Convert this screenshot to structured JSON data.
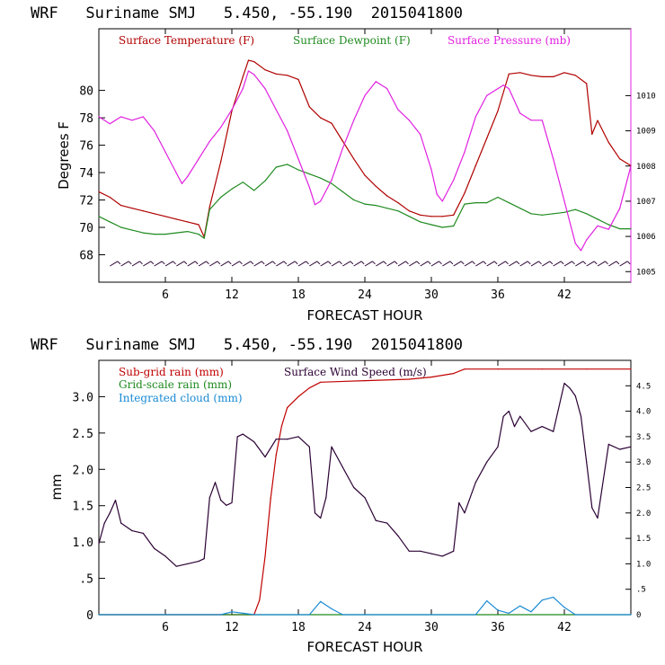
{
  "colors": {
    "temperature": "#b00000",
    "dewpoint": "#1f8a1f",
    "pressure": "#e020e0",
    "wind_speed": "#2a0033",
    "subgrid_rain": "#c00000",
    "grid_rain": "#1f8a1f",
    "cloud": "#1a8ad4",
    "wind_barb": "#2a0033"
  },
  "chart_data": [
    {
      "type": "line",
      "title": "WRF   Suriname SMJ   5.450, -55.190  2015041800",
      "xlabel": "FORECAST HOUR",
      "ylabel": "Degrees F",
      "xlim": [
        0,
        48
      ],
      "ylim": [
        66,
        84.5
      ],
      "y2lim": [
        1004.7,
        1011.9
      ],
      "x_ticks": [
        6,
        12,
        18,
        24,
        30,
        36,
        42
      ],
      "x_tick_labels": [
        "6",
        "12",
        "18",
        "24",
        "30",
        "36",
        "42"
      ],
      "y_ticks": [
        68,
        70,
        72,
        74,
        76,
        78,
        80
      ],
      "y_tick_labels": [
        "68",
        "70",
        "72",
        "74",
        "76",
        "78",
        "80"
      ],
      "y2_ticks": [
        1005,
        1006,
        1007,
        1008,
        1009,
        1010
      ],
      "y2_tick_labels": [
        "1005",
        "1006",
        "1007",
        "1008",
        "1009",
        "1010"
      ],
      "grid": false,
      "legend_position": "top",
      "series": [
        {
          "name": "Surface Temperature (F)",
          "axis": "left",
          "x": [
            0,
            1,
            2,
            3,
            4,
            5,
            6,
            7,
            8,
            9,
            9.5,
            10,
            11,
            12,
            13,
            13.5,
            14,
            15,
            16,
            17,
            18,
            19,
            20,
            21,
            22,
            23,
            24,
            25,
            26,
            27,
            28,
            29,
            30,
            31,
            32,
            33,
            34,
            35,
            36,
            37,
            38,
            39,
            40,
            41,
            42,
            43,
            44,
            44.5,
            45,
            46,
            47,
            48
          ],
          "y": [
            72.6,
            72.2,
            71.6,
            71.4,
            71.2,
            71.0,
            70.8,
            70.6,
            70.4,
            70.2,
            69.3,
            71.5,
            74.8,
            78.5,
            81.0,
            82.2,
            82.1,
            81.5,
            81.2,
            81.1,
            80.8,
            78.8,
            78.0,
            77.6,
            76.3,
            75.0,
            73.8,
            73.0,
            72.3,
            71.8,
            71.2,
            70.9,
            70.8,
            70.8,
            70.9,
            72.5,
            74.5,
            76.5,
            78.5,
            81.2,
            81.3,
            81.1,
            81.0,
            81.0,
            81.3,
            81.1,
            80.5,
            76.8,
            77.8,
            76.2,
            75.0,
            74.5
          ]
        },
        {
          "name": "Surface Dewpoint (F)",
          "axis": "left",
          "x": [
            0,
            1,
            2,
            3,
            4,
            5,
            6,
            7,
            8,
            9,
            9.5,
            10,
            11,
            12,
            13,
            14,
            15,
            16,
            17,
            18,
            19,
            20,
            21,
            22,
            23,
            24,
            25,
            26,
            27,
            28,
            29,
            30,
            31,
            32,
            33,
            34,
            35,
            36,
            37,
            38,
            39,
            40,
            41,
            42,
            43,
            44,
            45,
            46,
            47,
            48
          ],
          "y": [
            70.8,
            70.4,
            70.0,
            69.8,
            69.6,
            69.5,
            69.5,
            69.6,
            69.7,
            69.5,
            69.2,
            71.3,
            72.2,
            72.8,
            73.3,
            72.7,
            73.4,
            74.4,
            74.6,
            74.2,
            73.9,
            73.6,
            73.2,
            72.6,
            72.0,
            71.7,
            71.6,
            71.4,
            71.2,
            70.8,
            70.4,
            70.2,
            70.0,
            70.1,
            71.7,
            71.8,
            71.8,
            72.2,
            71.8,
            71.4,
            71.0,
            70.9,
            71.0,
            71.1,
            71.3,
            71.0,
            70.6,
            70.2,
            69.9,
            69.9
          ]
        },
        {
          "name": "Surface Pressure (mb)",
          "axis": "right",
          "x": [
            0,
            1,
            2,
            3,
            4,
            5,
            6,
            7,
            7.5,
            8,
            9,
            10,
            11,
            12,
            13,
            13.5,
            14,
            15,
            16,
            17,
            18,
            19,
            19.5,
            20,
            21,
            22,
            23,
            24,
            25,
            26,
            27,
            28,
            29,
            30,
            30.5,
            31,
            32,
            33,
            34,
            35,
            36,
            36.5,
            37,
            38,
            39,
            40,
            41,
            42,
            43,
            43.5,
            44,
            45,
            46,
            47,
            48
          ],
          "y": [
            1009.4,
            1009.2,
            1009.4,
            1009.3,
            1009.4,
            1009.0,
            1008.4,
            1007.8,
            1007.5,
            1007.7,
            1008.2,
            1008.7,
            1009.1,
            1009.6,
            1010.2,
            1010.7,
            1010.6,
            1010.2,
            1009.6,
            1009.0,
            1008.2,
            1007.4,
            1006.9,
            1007.0,
            1007.6,
            1008.5,
            1009.3,
            1010.0,
            1010.4,
            1010.2,
            1009.6,
            1009.3,
            1008.9,
            1007.9,
            1007.2,
            1007.0,
            1007.6,
            1008.4,
            1009.4,
            1010.0,
            1010.2,
            1010.3,
            1010.2,
            1009.5,
            1009.3,
            1009.3,
            1008.2,
            1007.0,
            1005.8,
            1005.6,
            1005.9,
            1006.3,
            1006.2,
            1006.8,
            1008.0
          ]
        }
      ]
    },
    {
      "type": "line",
      "title": "WRF   Suriname SMJ   5.450, -55.190  2015041800",
      "xlabel": "FORECAST HOUR",
      "ylabel": "mm",
      "xlim": [
        0,
        48
      ],
      "ylim": [
        0,
        3.5
      ],
      "y2lim": [
        0,
        5.0
      ],
      "x_ticks": [
        6,
        12,
        18,
        24,
        30,
        36,
        42
      ],
      "x_tick_labels": [
        "6",
        "12",
        "18",
        "24",
        "30",
        "36",
        "42"
      ],
      "y_ticks": [
        0,
        0.5,
        1.0,
        1.5,
        2.0,
        2.5,
        3.0
      ],
      "y_tick_labels": [
        "0",
        ".5",
        "1.0",
        "1.5",
        "2.0",
        "2.5",
        "3.0"
      ],
      "y2_ticks": [
        0,
        0.5,
        1.0,
        1.5,
        2.0,
        2.5,
        3.0,
        3.5,
        4.0,
        4.5
      ],
      "y2_tick_labels": [
        "0",
        ".5",
        "1.0",
        "1.5",
        "2.0",
        "2.5",
        "3.0",
        "3.5",
        "4.0",
        "4.5"
      ],
      "grid": false,
      "legend_position": "top",
      "series": [
        {
          "name": "Sub-grid rain (mm)",
          "axis": "left",
          "x": [
            0,
            14,
            14.5,
            15,
            15.5,
            16,
            16.5,
            17,
            18,
            19,
            20,
            24,
            28,
            30,
            32,
            33,
            36,
            40,
            44,
            48
          ],
          "y": [
            0,
            0,
            0.2,
            0.8,
            1.6,
            2.2,
            2.6,
            2.85,
            3.0,
            3.12,
            3.2,
            3.22,
            3.24,
            3.27,
            3.32,
            3.38,
            3.38,
            3.38,
            3.38,
            3.38
          ]
        },
        {
          "name": "Grid-scale rain (mm)",
          "axis": "left",
          "x": [
            0,
            48
          ],
          "y": [
            0,
            0
          ]
        },
        {
          "name": "Integrated cloud (mm)",
          "axis": "left",
          "x": [
            0,
            11,
            12,
            13,
            14,
            19,
            20,
            21,
            22,
            34,
            35,
            36,
            37,
            38,
            39,
            40,
            41,
            42,
            43,
            48
          ],
          "y": [
            0,
            0,
            0.04,
            0.02,
            0,
            0,
            0.18,
            0.08,
            0,
            0,
            0.19,
            0.06,
            0.02,
            0.12,
            0.04,
            0.2,
            0.24,
            0.1,
            0,
            0
          ]
        },
        {
          "name": "Surface Wind Speed (m/s)",
          "axis": "right",
          "x": [
            0,
            0.5,
            1,
            1.5,
            2,
            3,
            4,
            5,
            6,
            7,
            8,
            9,
            9.5,
            10,
            10.5,
            11,
            11.5,
            12,
            12.5,
            13,
            14,
            15,
            16,
            17,
            18,
            19,
            19.5,
            20,
            20.5,
            21,
            22,
            23,
            24,
            25,
            26,
            27,
            28,
            29,
            30,
            31,
            32,
            32.5,
            33,
            34,
            35,
            36,
            36.5,
            37,
            37.5,
            38,
            39,
            40,
            41,
            42,
            42.5,
            43,
            43.5,
            44,
            44.5,
            45,
            46,
            47,
            48
          ],
          "y": [
            1.4,
            1.8,
            2.0,
            2.25,
            1.8,
            1.65,
            1.6,
            1.3,
            1.15,
            0.95,
            1.0,
            1.05,
            1.1,
            2.3,
            2.6,
            2.25,
            2.15,
            2.2,
            3.5,
            3.55,
            3.4,
            3.1,
            3.45,
            3.45,
            3.5,
            3.3,
            2.0,
            1.9,
            2.3,
            3.3,
            2.9,
            2.5,
            2.3,
            1.85,
            1.8,
            1.55,
            1.25,
            1.25,
            1.2,
            1.15,
            1.25,
            2.2,
            2.0,
            2.6,
            3.0,
            3.3,
            3.9,
            4.0,
            3.7,
            3.9,
            3.6,
            3.7,
            3.6,
            4.55,
            4.45,
            4.3,
            3.9,
            3.0,
            2.1,
            1.9,
            3.35,
            3.25,
            3.3
          ]
        }
      ]
    }
  ]
}
